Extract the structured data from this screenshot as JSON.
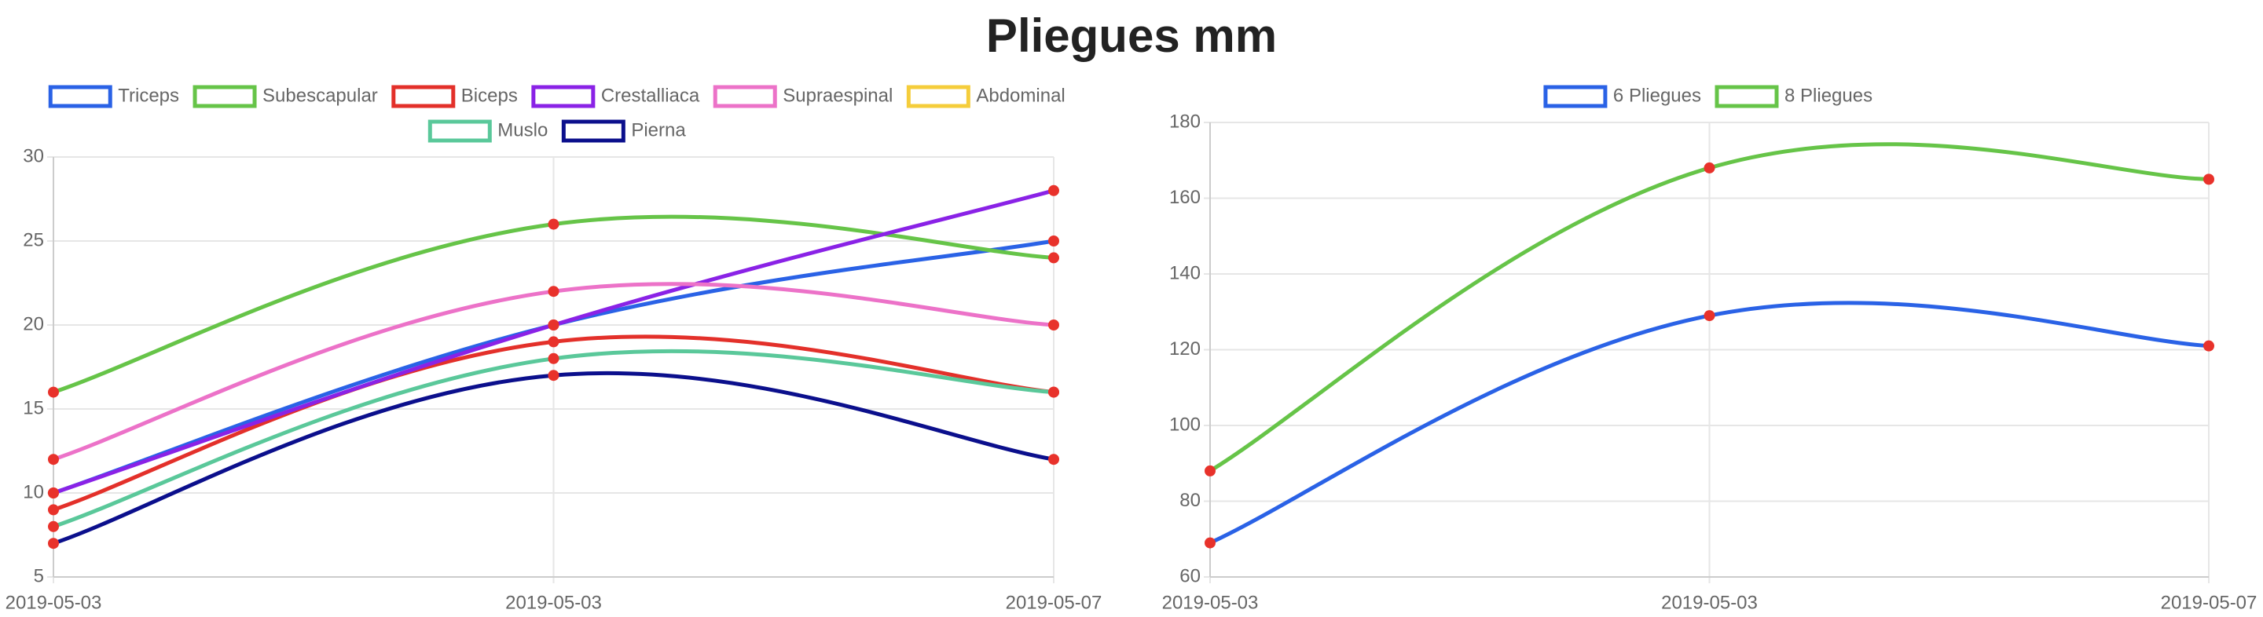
{
  "title": "Pliegues mm",
  "chart_data": [
    {
      "type": "line",
      "categories": [
        "2019-05-03",
        "2019-05-03",
        "2019-05-07"
      ],
      "ylim": [
        5,
        30
      ],
      "yticks": [
        5,
        10,
        15,
        20,
        25,
        30
      ],
      "grid": true,
      "point_color": "#e8322b",
      "series": [
        {
          "name": "Triceps",
          "color": "#2a62e6",
          "values": [
            10,
            20,
            25
          ]
        },
        {
          "name": "Subescapular",
          "color": "#66c448",
          "values": [
            16,
            26,
            24
          ]
        },
        {
          "name": "Biceps",
          "color": "#e3302a",
          "values": [
            9,
            19,
            16
          ]
        },
        {
          "name": "Crestalliaca",
          "color": "#8a22e6",
          "values": [
            10,
            20,
            28
          ]
        },
        {
          "name": "Supraespinal",
          "color": "#ec72c8",
          "values": [
            12,
            22,
            20
          ]
        },
        {
          "name": "Abdominal",
          "color": "#f5cd3b",
          "values": [
            null,
            null,
            null
          ]
        },
        {
          "name": "Muslo",
          "color": "#5ac89a",
          "values": [
            8,
            18,
            16
          ]
        },
        {
          "name": "Pierna",
          "color": "#0b0f8c",
          "values": [
            7,
            17,
            12
          ]
        }
      ]
    },
    {
      "type": "line",
      "categories": [
        "2019-05-03",
        "2019-05-03",
        "2019-05-07"
      ],
      "ylim": [
        60,
        180
      ],
      "yticks": [
        60,
        80,
        100,
        120,
        140,
        160,
        180
      ],
      "grid": true,
      "point_color": "#e8322b",
      "series": [
        {
          "name": "6 Pliegues",
          "color": "#2a62e6",
          "values": [
            69,
            129,
            121
          ]
        },
        {
          "name": "8 Pliegues",
          "color": "#66c448",
          "values": [
            88,
            168,
            165
          ]
        }
      ]
    }
  ]
}
